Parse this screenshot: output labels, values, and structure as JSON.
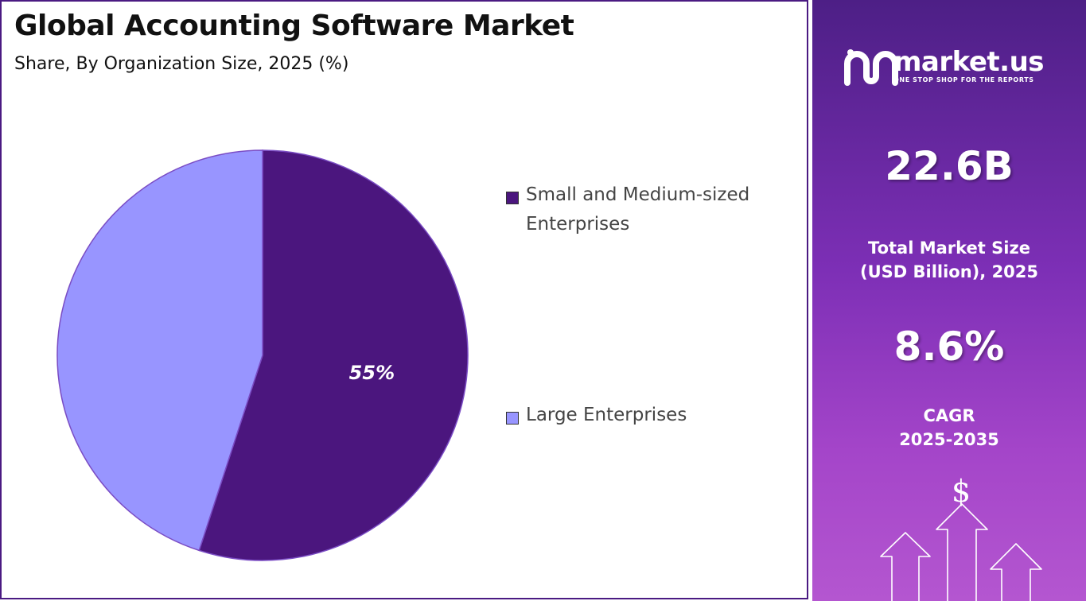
{
  "header": {
    "title": "Global Accounting Software Market",
    "subtitle": "Share, By Organization Size, 2025 (%)"
  },
  "chart_data": {
    "type": "pie",
    "title": "Global Accounting Software Market",
    "subtitle": "Share, By Organization Size, 2025 (%)",
    "categories": [
      "Small and Medium-sized Enterprises",
      "Large Enterprises"
    ],
    "values": [
      55,
      45
    ],
    "data_labels": [
      "55%",
      ""
    ],
    "colors": [
      "#4b167e",
      "#9895ff"
    ],
    "legend": "right"
  },
  "legend": {
    "items": [
      {
        "label": "Small and Medium-sized Enterprises",
        "color": "#4b167e"
      },
      {
        "label": "Large Enterprises",
        "color": "#9895ff"
      }
    ]
  },
  "sidebar": {
    "brand_name": "market.us",
    "brand_tagline": "ONE STOP SHOP FOR THE REPORTS",
    "market_size_value": "22.6B",
    "market_size_label_line1": "Total Market Size",
    "market_size_label_line2": "(USD Billion), 2025",
    "cagr_value": "8.6%",
    "cagr_label_line1": "CAGR",
    "cagr_label_line2": "2025-2035",
    "dollar_symbol": "$"
  }
}
